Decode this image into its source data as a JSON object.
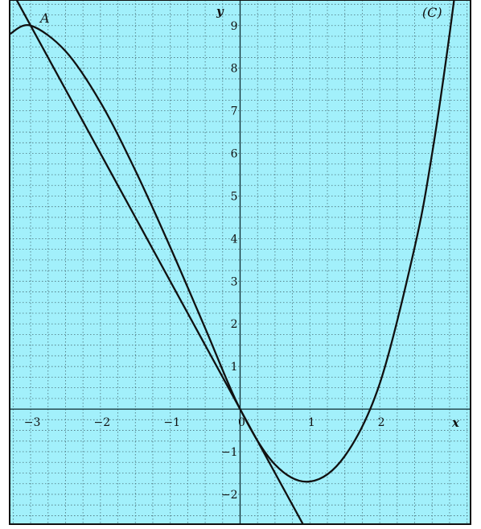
{
  "colors": {
    "background": "#a2f0fb",
    "grid": "#4a6f78",
    "axis": "#0d2a30",
    "curve": "#111111",
    "frame": "#111111"
  },
  "chart_data": {
    "type": "line",
    "title": "",
    "xlabel": "x",
    "ylabel": "y",
    "xlim": [
      -3.3,
      3.3
    ],
    "ylim": [
      -2.7,
      9.6
    ],
    "grid": true,
    "grid_step": 0.25,
    "grid_style": "dotted",
    "legend": "none",
    "x_ticks": [
      -3,
      -2,
      -1,
      0,
      1,
      2
    ],
    "x_tick_labels": [
      "−3",
      "−2",
      "−1",
      "0",
      "1",
      "2"
    ],
    "y_ticks": [
      -2,
      -1,
      1,
      2,
      3,
      4,
      5,
      6,
      7,
      8,
      9
    ],
    "y_tick_labels": [
      "−2",
      "−1",
      "1",
      "2",
      "3",
      "4",
      "5",
      "6",
      "7",
      "8",
      "9"
    ],
    "annotations": [
      {
        "text": "A",
        "x": -3,
        "y": 9
      },
      {
        "text": "(C)",
        "x": 2.75,
        "y": 9.2
      }
    ],
    "series": [
      {
        "kind": "curve",
        "x": [
          -3.3,
          -3.0,
          -2.5,
          -2.0,
          -1.5,
          -1.0,
          -0.5,
          0.0,
          0.5,
          1.0,
          1.5,
          2.0,
          2.5,
          2.75,
          3.0,
          3.3
        ],
        "y": [
          8.8,
          9.0,
          8.4,
          7.2,
          5.6,
          3.8,
          1.9,
          0.0,
          -1.3,
          -1.7,
          -1.1,
          0.6,
          3.8,
          6.0,
          8.8,
          12.6
        ]
      },
      {
        "kind": "line",
        "x": [
          -3.3,
          0.0,
          0.95
        ],
        "y": [
          9.9,
          0.0,
          -2.85
        ]
      }
    ]
  }
}
